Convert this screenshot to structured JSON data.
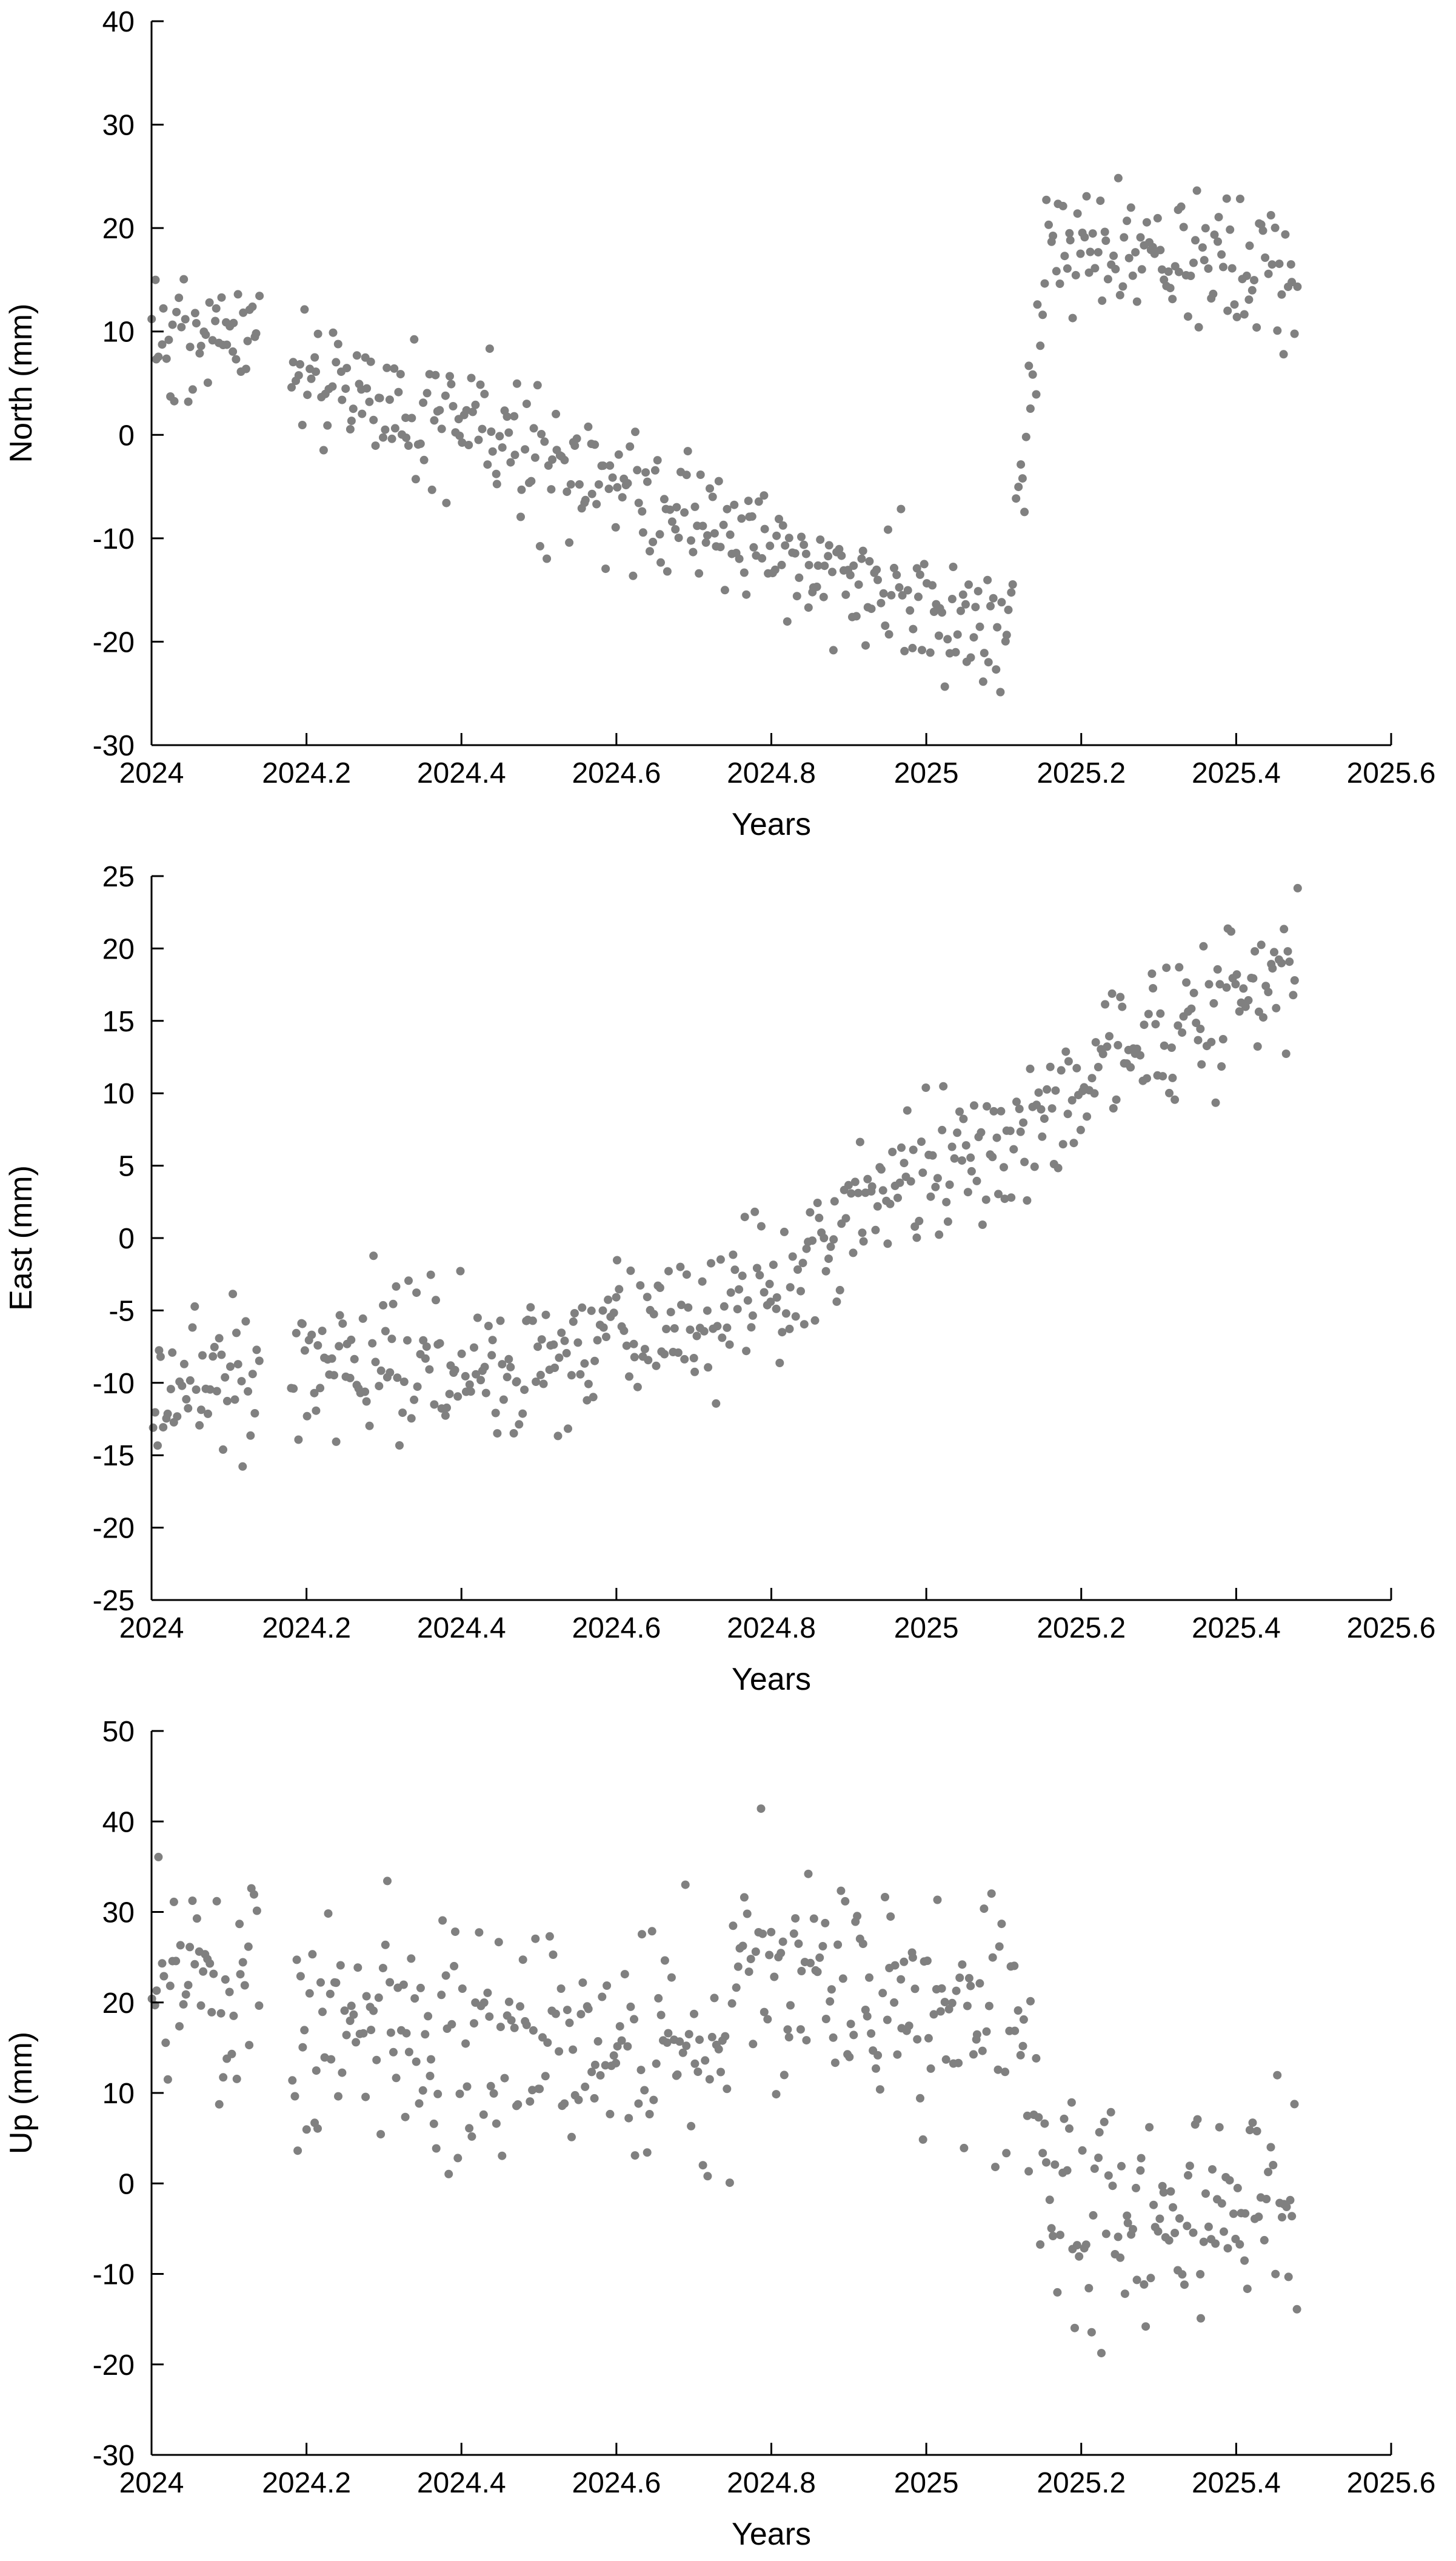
{
  "chart_data": [
    {
      "type": "scatter",
      "xlabel": "Years",
      "ylabel": "North (mm)",
      "xlim": [
        2024,
        2025.6
      ],
      "ylim": [
        -30,
        40
      ],
      "xticks": [
        2024,
        2024.2,
        2024.4,
        2024.6,
        2024.8,
        2025,
        2025.2,
        2025.4,
        2025.6
      ],
      "xtick_labels": [
        "2024",
        "2024.2",
        "2024.4",
        "2024.6",
        "2024.8",
        "2025",
        "2025.2",
        "2025.4",
        "2025.6"
      ],
      "yticks": [
        -30,
        -20,
        -10,
        0,
        10,
        20,
        30,
        40
      ],
      "ytick_labels": [
        "-30",
        "-20",
        "-10",
        "0",
        "10",
        "20",
        "30",
        "40"
      ],
      "marker_color": "#808080",
      "grid": false,
      "trend": {
        "segments": [
          {
            "x0": 2024.0,
            "x1": 2024.14,
            "y0": 9,
            "y1": 9.5
          },
          {
            "x0": 2024.18,
            "x1": 2025.1,
            "y0": 7,
            "y1": -20
          },
          {
            "x0": 2025.1,
            "x1": 2025.16,
            "y0": -20,
            "y1": 19
          },
          {
            "x0": 2025.16,
            "x1": 2025.48,
            "y0": 19,
            "y1": 15
          }
        ],
        "noise": 3.2
      }
    },
    {
      "type": "scatter",
      "xlabel": "Years",
      "ylabel": "East (mm)",
      "xlim": [
        2024,
        2025.6
      ],
      "ylim": [
        -25,
        25
      ],
      "xticks": [
        2024,
        2024.2,
        2024.4,
        2024.6,
        2024.8,
        2025,
        2025.2,
        2025.4,
        2025.6
      ],
      "xtick_labels": [
        "2024",
        "2024.2",
        "2024.4",
        "2024.6",
        "2024.8",
        "2025",
        "2025.2",
        "2025.4",
        "2025.6"
      ],
      "yticks": [
        -25,
        -20,
        -15,
        -10,
        -5,
        0,
        5,
        10,
        15,
        20,
        25
      ],
      "ytick_labels": [
        "-25",
        "-20",
        "-15",
        "-10",
        "-5",
        "0",
        "5",
        "10",
        "15",
        "20",
        "25"
      ],
      "marker_color": "#808080",
      "grid": false,
      "trend": {
        "segments": [
          {
            "x0": 2024.0,
            "x1": 2024.14,
            "y0": -10,
            "y1": -9.5
          },
          {
            "x0": 2024.18,
            "x1": 2024.5,
            "y0": -8.5,
            "y1": -8.5
          },
          {
            "x0": 2024.5,
            "x1": 2024.85,
            "y0": -8,
            "y1": -3
          },
          {
            "x0": 2024.85,
            "x1": 2025.48,
            "y0": 0,
            "y1": 19
          }
        ],
        "noise": 2.6
      }
    },
    {
      "type": "scatter",
      "xlabel": "Years",
      "ylabel": "Up (mm)",
      "xlim": [
        2024,
        2025.6
      ],
      "ylim": [
        -30,
        50
      ],
      "xticks": [
        2024,
        2024.2,
        2024.4,
        2024.6,
        2024.8,
        2025,
        2025.2,
        2025.4,
        2025.6
      ],
      "xtick_labels": [
        "2024",
        "2024.2",
        "2024.4",
        "2024.6",
        "2024.8",
        "2025",
        "2025.2",
        "2025.4",
        "2025.6"
      ],
      "yticks": [
        -30,
        -20,
        -10,
        0,
        10,
        20,
        30,
        40,
        50
      ],
      "ytick_labels": [
        "-30",
        "-20",
        "-10",
        "0",
        "10",
        "20",
        "30",
        "40",
        "50"
      ],
      "marker_color": "#808080",
      "grid": false,
      "trend": {
        "segments": [
          {
            "x0": 2024.0,
            "x1": 2024.14,
            "y0": 19,
            "y1": 20
          },
          {
            "x0": 2024.18,
            "x1": 2024.75,
            "y0": 18,
            "y1": 15
          },
          {
            "x0": 2024.75,
            "x1": 2025.12,
            "y0": 24,
            "y1": 18
          },
          {
            "x0": 2025.12,
            "x1": 2025.16,
            "y0": 12,
            "y1": 2
          },
          {
            "x0": 2025.16,
            "x1": 2025.48,
            "y0": -3,
            "y1": -2
          }
        ],
        "noise": 6.5
      }
    }
  ]
}
